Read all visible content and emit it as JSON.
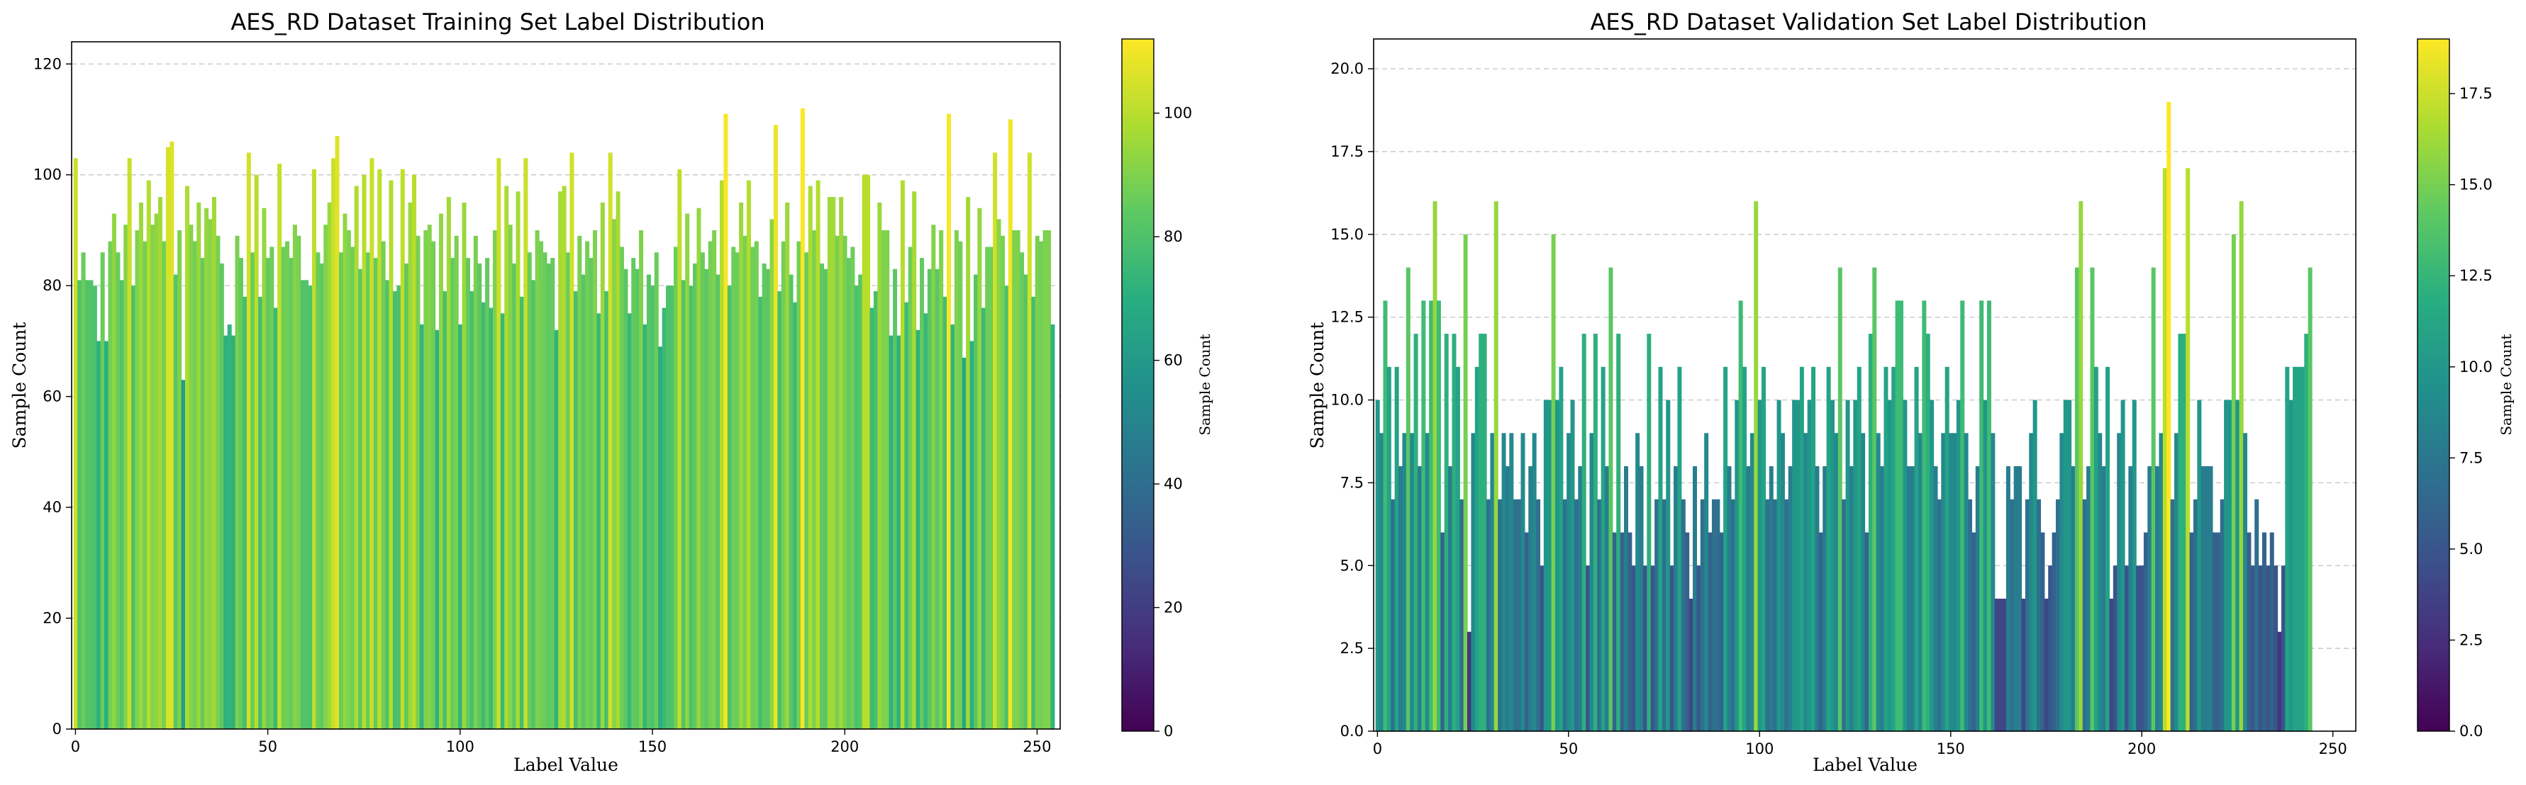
{
  "chart_data": [
    {
      "type": "bar",
      "title": "AES_RD Dataset Training Set Label Distribution",
      "xlabel": "Label Value",
      "ylabel": "Sample Count",
      "colorbar_label": "Sample Count",
      "colormap": "viridis",
      "xlim": [
        -1,
        256
      ],
      "ylim": [
        0,
        124
      ],
      "x_ticks": [
        0,
        50,
        100,
        150,
        200,
        250
      ],
      "y_ticks": [
        0,
        20,
        40,
        60,
        80,
        100,
        120
      ],
      "colorbar_range": [
        0,
        112
      ],
      "colorbar_ticks": [
        0,
        20,
        40,
        60,
        80,
        100
      ],
      "grid": "y dashed",
      "values": [
        103,
        81,
        86,
        81,
        81,
        80,
        70,
        86,
        70,
        88,
        93,
        86,
        81,
        91,
        103,
        80,
        90,
        95,
        88,
        99,
        91,
        93,
        96,
        88,
        105,
        106,
        82,
        90,
        63,
        98,
        91,
        88,
        95,
        85,
        94,
        92,
        96,
        89,
        84,
        71,
        73,
        71,
        89,
        85,
        78,
        104,
        86,
        100,
        78,
        94,
        85,
        87,
        76,
        102,
        87,
        88,
        85,
        91,
        89,
        81,
        81,
        80,
        101,
        86,
        84,
        91,
        95,
        103,
        107,
        86,
        93,
        90,
        87,
        98,
        83,
        100,
        86,
        103,
        85,
        101,
        88,
        81,
        99,
        79,
        80,
        101,
        84,
        95,
        100,
        89,
        73,
        90,
        91,
        88,
        72,
        93,
        79,
        96,
        85,
        89,
        73,
        95,
        85,
        79,
        89,
        84,
        77,
        85,
        76,
        90,
        103,
        75,
        98,
        91,
        84,
        97,
        78,
        103,
        86,
        81,
        90,
        88,
        86,
        84,
        85,
        72,
        97,
        98,
        86,
        104,
        79,
        89,
        82,
        88,
        85,
        90,
        75,
        95,
        79,
        104,
        92,
        97,
        87,
        83,
        75,
        85,
        83,
        90,
        73,
        82,
        80,
        86,
        69,
        76,
        80,
        80,
        87,
        101,
        81,
        93,
        80,
        84,
        94,
        86,
        83,
        88,
        90,
        82,
        99,
        111,
        80,
        87,
        86,
        95,
        89,
        99,
        87,
        88,
        78,
        84,
        83,
        92,
        109,
        79,
        88,
        95,
        82,
        77,
        88,
        112,
        86,
        98,
        90,
        99,
        84,
        83,
        96,
        96,
        89,
        96,
        89,
        85,
        87,
        80,
        82,
        100,
        100,
        76,
        79,
        95,
        90,
        90,
        71,
        83,
        71,
        99,
        77,
        87,
        97,
        72,
        85,
        75,
        83,
        91,
        83,
        90,
        78,
        111,
        73,
        90,
        88,
        67,
        96,
        70,
        82,
        94,
        76,
        87,
        87,
        104,
        92,
        89,
        80,
        110,
        90,
        90,
        86,
        82,
        104,
        78,
        89,
        88,
        90,
        90,
        73
      ]
    },
    {
      "type": "bar",
      "title": "AES_RD Dataset Validation Set Label Distribution",
      "xlabel": "Label Value",
      "ylabel": "Sample Count",
      "colorbar_label": "Sample Count",
      "colormap": "viridis",
      "xlim": [
        -1,
        256
      ],
      "ylim": [
        0,
        20.9
      ],
      "x_ticks": [
        0,
        50,
        100,
        150,
        200,
        250
      ],
      "y_ticks": [
        0.0,
        2.5,
        5.0,
        7.5,
        10.0,
        12.5,
        15.0,
        17.5,
        20.0
      ],
      "colorbar_range": [
        0,
        19
      ],
      "colorbar_ticks": [
        0.0,
        2.5,
        5.0,
        7.5,
        10.0,
        12.5,
        15.0,
        17.5
      ],
      "grid": "y dashed",
      "values": [
        10,
        9,
        13,
        11,
        7,
        11,
        8,
        9,
        14,
        9,
        12,
        8,
        13,
        9,
        13,
        16,
        13,
        6,
        12,
        8,
        12,
        11,
        7,
        15,
        3,
        9,
        11,
        12,
        12,
        7,
        9,
        16,
        7,
        9,
        8,
        9,
        7,
        7,
        9,
        6,
        8,
        9,
        7,
        5,
        10,
        10,
        15,
        10,
        11,
        7,
        9,
        10,
        7,
        8,
        12,
        5,
        9,
        12,
        7,
        11,
        8,
        14,
        6,
        12,
        6,
        8,
        6,
        5,
        9,
        8,
        5,
        12,
        5,
        7,
        11,
        7,
        10,
        5,
        8,
        11,
        7,
        6,
        4,
        8,
        5,
        7,
        9,
        6,
        7,
        7,
        6,
        11,
        8,
        7,
        10,
        13,
        11,
        8,
        9,
        16,
        10,
        11,
        7,
        8,
        7,
        10,
        9,
        7,
        8,
        10,
        10,
        11,
        9,
        10,
        11,
        8,
        6,
        8,
        11,
        10,
        9,
        14,
        7,
        10,
        8,
        10,
        11,
        9,
        6,
        12,
        14,
        9,
        8,
        11,
        10,
        11,
        13,
        13,
        10,
        8,
        8,
        11,
        9,
        13,
        12,
        10,
        8,
        7,
        9,
        11,
        9,
        9,
        10,
        13,
        9,
        7,
        6,
        8,
        13,
        10,
        13,
        9,
        4,
        4,
        4,
        8,
        7,
        8,
        8,
        4,
        7,
        9,
        10,
        7,
        6,
        4,
        5,
        6,
        7,
        9,
        10,
        10,
        8,
        14,
        16,
        7,
        8,
        14,
        11,
        9,
        8,
        11,
        4,
        5,
        9,
        10,
        5,
        8,
        10,
        5,
        5,
        6,
        8,
        14,
        8,
        9,
        17,
        19,
        7,
        9,
        12,
        12,
        17,
        6,
        7,
        10,
        8,
        8,
        8,
        6,
        6,
        7,
        10,
        10,
        15,
        10,
        16,
        9,
        6,
        5,
        7,
        5,
        6,
        5,
        6,
        5,
        3,
        5,
        11,
        10,
        11,
        11,
        11,
        12,
        14
      ]
    }
  ]
}
